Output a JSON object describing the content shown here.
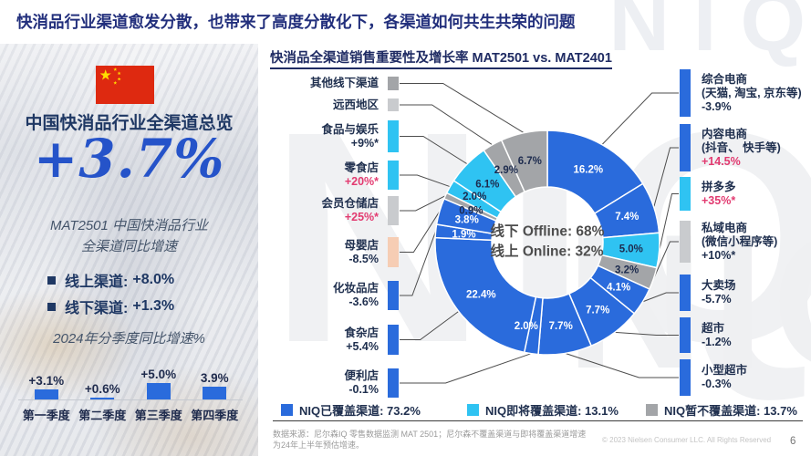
{
  "page": {
    "title": "快消品行业渠道愈发分散，也带来了高度分散化下，各渠道如何共生共荣的问题",
    "footer_source": "数据来源：尼尔森IQ 零售数据监测 MAT 2501；尼尔森不覆盖渠道与即将覆盖渠道增速为24年上半年预估增速。",
    "footer_copyright": "© 2023 Nielsen Consumer LLC. All Rights Reserved",
    "page_number": "6",
    "watermark": "NIQ"
  },
  "colors": {
    "covered": "#2A6BDC",
    "upcoming": "#2FC3F2",
    "not_covered": "#A3A5A8",
    "accent_red": "#E23A70",
    "navy": "#1F3864",
    "big_number_blue": "#2553C9",
    "flag_red": "#DE2910",
    "flag_yellow": "#FFDE00"
  },
  "sidebar": {
    "heading": "中国快消品行业全渠道总览",
    "big_number": "+3.7%",
    "caption_line1": "MAT2501 中国快消品行业",
    "caption_line2": "全渠道同比增速",
    "bullets": [
      {
        "label": "线上渠道:",
        "value": "+8.0%"
      },
      {
        "label": "线下渠道:",
        "value": "+1.3%"
      }
    ]
  },
  "chart_data": [
    {
      "type": "donut",
      "title": "快消品全渠道销售重要性及增长率 MAT2501 vs. MAT2401",
      "center_line1": "线下 Offline: 68%",
      "center_line2": "线上 Online: 32%",
      "unit": "%",
      "segments": [
        {
          "name": "综合电商",
          "sub": "(天猫, 淘宝, 京东等)",
          "value": 16.2,
          "growth": "-3.9%",
          "group": "covered",
          "side": "right",
          "highlight": false
        },
        {
          "name": "内容电商",
          "sub": "(抖音、 快手等)",
          "value": 7.4,
          "growth": "+14.5%",
          "group": "covered",
          "side": "right",
          "highlight": true
        },
        {
          "name": "拼多多",
          "sub": "",
          "value": 5.0,
          "growth": "+35%*",
          "group": "upcoming",
          "side": "right",
          "highlight": true
        },
        {
          "name": "私域电商",
          "sub": "(微信小程序等)",
          "value": 3.2,
          "growth": "+10%*",
          "group": "not_covered",
          "side": "right",
          "highlight": false,
          "marker_color": "#C9CBCE"
        },
        {
          "name": "大卖场",
          "sub": "",
          "value": 4.1,
          "growth": "-5.7%",
          "group": "covered",
          "side": "right",
          "highlight": false
        },
        {
          "name": "超市",
          "sub": "",
          "value": 7.7,
          "growth": "-1.2%",
          "group": "covered",
          "side": "right",
          "highlight": false
        },
        {
          "name": "小型超市",
          "sub": "",
          "value": 7.7,
          "growth": "-0.3%",
          "group": "covered",
          "side": "right",
          "highlight": false
        },
        {
          "name": "便利店",
          "sub": "",
          "value": 2.0,
          "growth": "-0.1%",
          "group": "covered",
          "side": "left",
          "highlight": false
        },
        {
          "name": "食杂店",
          "sub": "",
          "value": 22.4,
          "growth": "+5.4%",
          "group": "covered",
          "side": "left",
          "highlight": false
        },
        {
          "name": "化妆品店",
          "sub": "",
          "value": 1.9,
          "growth": "-3.6%",
          "group": "covered",
          "side": "left",
          "highlight": false
        },
        {
          "name": "母婴店",
          "sub": "",
          "value": 3.8,
          "growth": "-8.5%",
          "group": "covered",
          "side": "left",
          "highlight": false,
          "marker_color": "#F6CDB4"
        },
        {
          "name": "会员仓储店",
          "sub": "",
          "value": 0.9,
          "growth": "+25%*",
          "group": "not_covered",
          "side": "left",
          "highlight": true,
          "marker_color": "#C9CBCE"
        },
        {
          "name": "零食店",
          "sub": "",
          "value": 2.0,
          "growth": "+20%*",
          "group": "upcoming",
          "side": "left",
          "highlight": true
        },
        {
          "name": "食品与娱乐",
          "sub": "",
          "value": 6.1,
          "growth": "+9%*",
          "group": "upcoming",
          "side": "left",
          "highlight": false
        },
        {
          "name": "远西地区",
          "sub": "",
          "value": 2.9,
          "growth": "",
          "group": "not_covered",
          "side": "left",
          "highlight": false,
          "marker_color": "#C9CBCE"
        },
        {
          "name": "其他线下渠道",
          "sub": "",
          "value": 6.7,
          "growth": "",
          "group": "not_covered",
          "side": "left",
          "highlight": false
        }
      ],
      "legend": [
        {
          "label": "NIQ已覆盖渠道:",
          "value": "73.2%",
          "group": "covered"
        },
        {
          "label": "NIQ即将覆盖渠道:",
          "value": "13.1%",
          "group": "upcoming"
        },
        {
          "label": "NIQ暂不覆盖渠道:",
          "value": "13.7%",
          "group": "not_covered"
        }
      ]
    },
    {
      "type": "bar",
      "title": "2024年分季度同比增速%",
      "categories": [
        "第一季度",
        "第二季度",
        "第三季度",
        "第四季度"
      ],
      "values": [
        3.1,
        0.6,
        5.0,
        3.9
      ],
      "value_labels": [
        "+3.1%",
        "+0.6%",
        "+5.0%",
        "3.9%"
      ],
      "ylim": [
        0,
        5.5
      ]
    }
  ]
}
